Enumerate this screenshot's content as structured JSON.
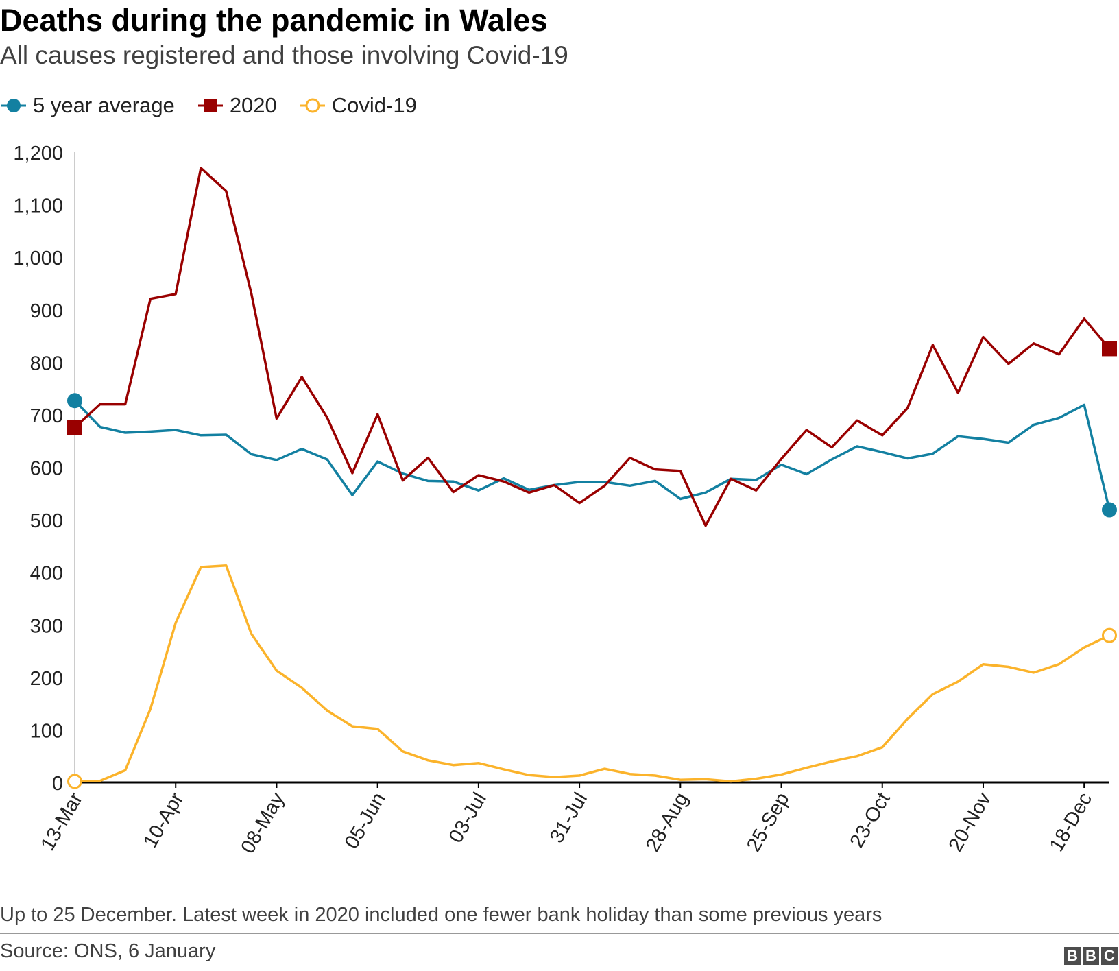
{
  "title": "Deaths during the pandemic in Wales",
  "subtitle": "All causes registered and those involving Covid-19",
  "footnote": "Up to 25 December. Latest week in 2020 included one fewer bank holiday than some previous years",
  "source": "Source: ONS, 6 January",
  "logo": [
    "B",
    "B",
    "C"
  ],
  "colors": {
    "avg": "#1380a1",
    "y2020": "#990000",
    "covid": "#fbb32b",
    "axis": "#000000",
    "grid": "#cccccc"
  },
  "chart_data": {
    "type": "line",
    "title": "Deaths during the pandemic in Wales",
    "xlabel": "",
    "ylabel": "",
    "ylim": [
      0,
      1200
    ],
    "yticks": [
      0,
      100,
      200,
      300,
      400,
      500,
      600,
      700,
      800,
      900,
      1000,
      1100,
      1200
    ],
    "ytick_labels": [
      "0",
      "100",
      "200",
      "300",
      "400",
      "500",
      "600",
      "700",
      "800",
      "900",
      "1,000",
      "1,100",
      "1,200"
    ],
    "x_labels": [
      {
        "index": 0,
        "label": "13-Mar"
      },
      {
        "index": 4,
        "label": "10-Apr"
      },
      {
        "index": 8,
        "label": "08-May"
      },
      {
        "index": 12,
        "label": "05-Jun"
      },
      {
        "index": 16,
        "label": "03-Jul"
      },
      {
        "index": 20,
        "label": "31-Jul"
      },
      {
        "index": 24,
        "label": "28-Aug"
      },
      {
        "index": 28,
        "label": "25-Sep"
      },
      {
        "index": 32,
        "label": "23-Oct"
      },
      {
        "index": 36,
        "label": "20-Nov"
      },
      {
        "index": 40,
        "label": "18-Dec"
      }
    ],
    "n_weeks": 42,
    "series": [
      {
        "name": "5 year average",
        "key": "avg",
        "marker": "circle-filled",
        "values": [
          727,
          677,
          666,
          668,
          671,
          661,
          662,
          625,
          614,
          635,
          615,
          547,
          611,
          588,
          574,
          573,
          556,
          579,
          557,
          566,
          572,
          572,
          565,
          574,
          540,
          552,
          578,
          576,
          605,
          587,
          615,
          640,
          629,
          617,
          626,
          659,
          654,
          647,
          681,
          694,
          719,
          519
        ]
      },
      {
        "name": "2020",
        "key": "y2020",
        "marker": "square-filled",
        "values": [
          676,
          720,
          720,
          921,
          930,
          1170,
          1126,
          931,
          693,
          772,
          695,
          589,
          701,
          575,
          618,
          553,
          585,
          573,
          552,
          566,
          532,
          565,
          618,
          596,
          593,
          489,
          578,
          556,
          616,
          671,
          638,
          689,
          661,
          713,
          833,
          742,
          848,
          797,
          836,
          815,
          883,
          826
        ]
      },
      {
        "name": "Covid-19",
        "key": "covid",
        "marker": "circle-open",
        "values": [
          2,
          3,
          23,
          140,
          304,
          410,
          413,
          283,
          213,
          180,
          137,
          107,
          102,
          59,
          42,
          33,
          37,
          25,
          14,
          10,
          13,
          26,
          16,
          13,
          5,
          6,
          2,
          7,
          15,
          28,
          40,
          50,
          67,
          121,
          168,
          192,
          225,
          220,
          209,
          225,
          257,
          280
        ]
      }
    ],
    "legend": [
      "5 year average",
      "2020",
      "Covid-19"
    ],
    "legend_position": "top-left"
  }
}
